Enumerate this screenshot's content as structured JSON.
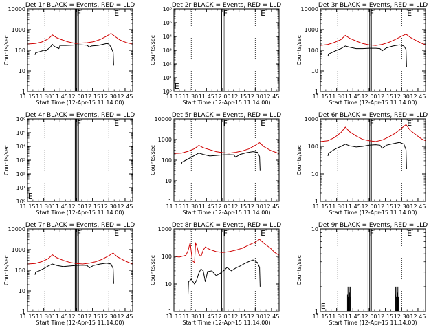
{
  "figure": {
    "xlabel": "Start Time (12-Apr-15 11:14:00)",
    "ylabel": "Counts/sec",
    "x_ticks": [
      "11:15",
      "11:30",
      "11:45",
      "12:00",
      "12:15",
      "12:30",
      "12:45"
    ],
    "x_range_min": [
      1,
      98
    ],
    "time_tick_min": [
      1,
      16,
      31,
      46,
      61,
      76,
      91
    ],
    "dotted_lines_min": [
      17,
      76
    ],
    "box_min": [
      45,
      48
    ],
    "colors": {
      "events": "#000000",
      "lld": "#d00000",
      "axis": "#000000"
    }
  },
  "chart_data": [
    {
      "type": "line",
      "title": "Det 1r BLACK = Events, RED = LLD",
      "yscale": "log",
      "ylim": [
        1,
        10000
      ],
      "yticks": [
        "1",
        "10",
        "100",
        "1000",
        "10000"
      ],
      "markers": [
        {
          "label": "F",
          "x": 46.5
        },
        {
          "label": "E",
          "x": 81
        }
      ],
      "series": [
        {
          "name": "LLD",
          "color": "#d00000",
          "x": [
            1,
            8,
            14,
            20,
            24,
            28,
            32,
            38,
            44,
            46,
            48,
            56,
            62,
            68,
            74,
            78,
            82,
            86,
            90,
            94,
            98
          ],
          "y": [
            200,
            210,
            250,
            350,
            550,
            400,
            330,
            260,
            220,
            210,
            220,
            230,
            260,
            330,
            480,
            650,
            450,
            320,
            260,
            220,
            200
          ]
        },
        {
          "name": "Events",
          "color": "#000000",
          "x": [
            8,
            8.5,
            12,
            16,
            18,
            22,
            24,
            26,
            30,
            31,
            36,
            42,
            46,
            50,
            56,
            58,
            60,
            66,
            72,
            74,
            76,
            78,
            80,
            80.5
          ],
          "y": [
            60,
            75,
            85,
            100,
            95,
            140,
            190,
            150,
            120,
            170,
            170,
            175,
            180,
            180,
            175,
            140,
            160,
            170,
            200,
            210,
            200,
            140,
            80,
            18
          ]
        }
      ]
    },
    {
      "type": "line",
      "title": "Det 2r BLACK = Events, RED = LLD",
      "yscale": "log",
      "ylim": [
        1,
        1000000
      ],
      "yticks": [
        "10⁰",
        "10¹",
        "10²",
        "10³",
        "10⁴",
        "10⁵",
        "10⁶"
      ],
      "markers": [
        {
          "label": "E",
          "x": 1.5
        },
        {
          "label": "F",
          "x": 46.5
        },
        {
          "label": "E",
          "x": 81
        }
      ],
      "series": []
    },
    {
      "type": "line",
      "title": "Det 3r BLACK = Events, RED = LLD",
      "yscale": "log",
      "ylim": [
        1,
        10000
      ],
      "yticks": [
        "1",
        "10",
        "100",
        "1000",
        "10000"
      ],
      "markers": [
        {
          "label": "F",
          "x": 46.5
        },
        {
          "label": "E",
          "x": 81
        }
      ],
      "series": [
        {
          "name": "LLD",
          "color": "#d00000",
          "x": [
            1,
            8,
            14,
            20,
            24,
            28,
            34,
            40,
            46,
            52,
            58,
            64,
            70,
            76,
            80,
            84,
            90,
            94,
            98
          ],
          "y": [
            170,
            190,
            240,
            330,
            520,
            380,
            280,
            210,
            180,
            170,
            190,
            240,
            330,
            480,
            600,
            420,
            280,
            220,
            180
          ]
        },
        {
          "name": "Events",
          "color": "#000000",
          "x": [
            8,
            8.5,
            12,
            16,
            20,
            24,
            28,
            34,
            40,
            46,
            52,
            56,
            58,
            62,
            68,
            74,
            78,
            80,
            80.5
          ],
          "y": [
            50,
            65,
            80,
            100,
            120,
            160,
            140,
            120,
            120,
            125,
            125,
            120,
            95,
            130,
            160,
            180,
            160,
            110,
            15
          ]
        }
      ]
    },
    {
      "type": "line",
      "title": "Det 4r BLACK = Events, RED = LLD",
      "yscale": "log",
      "ylim": [
        1,
        1000000
      ],
      "yticks": [
        "10⁰",
        "10¹",
        "10²",
        "10³",
        "10⁴",
        "10⁵",
        "10⁶"
      ],
      "markers": [
        {
          "label": "E",
          "x": 1.5
        },
        {
          "label": "F",
          "x": 46.5
        },
        {
          "label": "E",
          "x": 81
        }
      ],
      "series": []
    },
    {
      "type": "line",
      "title": "Det 5r BLACK = Events, RED = LLD",
      "yscale": "log",
      "ylim": [
        1,
        10000
      ],
      "yticks": [
        "1",
        "10",
        "100",
        "1000",
        "10000"
      ],
      "markers": [
        {
          "label": "F",
          "x": 46.5
        },
        {
          "label": "E",
          "x": 81
        }
      ],
      "series": [
        {
          "name": "LLD",
          "color": "#d00000",
          "x": [
            1,
            8,
            14,
            20,
            24,
            28,
            34,
            40,
            46,
            52,
            58,
            64,
            70,
            76,
            80,
            84,
            90,
            94,
            98
          ],
          "y": [
            210,
            220,
            270,
            360,
            520,
            400,
            320,
            260,
            230,
            220,
            240,
            280,
            350,
            520,
            700,
            450,
            300,
            250,
            210
          ]
        },
        {
          "name": "Events",
          "color": "#000000",
          "x": [
            8,
            8.5,
            12,
            16,
            20,
            24,
            28,
            34,
            40,
            46,
            52,
            56,
            58,
            62,
            68,
            74,
            78,
            80,
            80.5
          ],
          "y": [
            65,
            80,
            100,
            130,
            170,
            220,
            190,
            160,
            170,
            180,
            185,
            180,
            140,
            190,
            230,
            260,
            240,
            150,
            30
          ]
        }
      ]
    },
    {
      "type": "line",
      "title": "Det 6r BLACK = Events, RED = LLD",
      "yscale": "log",
      "ylim": [
        1,
        1000
      ],
      "yticks": [
        "1",
        "10",
        "100",
        "1000"
      ],
      "markers": [
        {
          "label": "F",
          "x": 46.5
        },
        {
          "label": "E",
          "x": 81
        }
      ],
      "series": [
        {
          "name": "LLD",
          "color": "#d00000",
          "x": [
            1,
            8,
            14,
            20,
            24,
            28,
            34,
            40,
            46,
            52,
            58,
            64,
            70,
            76,
            80,
            84,
            90,
            94,
            98
          ],
          "y": [
            150,
            160,
            210,
            320,
            500,
            340,
            240,
            180,
            160,
            150,
            170,
            220,
            300,
            460,
            620,
            380,
            250,
            190,
            160
          ]
        },
        {
          "name": "Events",
          "color": "#000000",
          "x": [
            8,
            8.5,
            12,
            16,
            20,
            24,
            28,
            34,
            40,
            46,
            52,
            56,
            58,
            62,
            68,
            74,
            78,
            80,
            80.5
          ],
          "y": [
            45,
            55,
            70,
            85,
            100,
            120,
            105,
            95,
            100,
            110,
            115,
            110,
            85,
            110,
            125,
            140,
            120,
            75,
            15
          ]
        }
      ]
    },
    {
      "type": "line",
      "title": "Det 7r BLACK = Events, RED = LLD",
      "yscale": "log",
      "ylim": [
        1,
        10000
      ],
      "yticks": [
        "1",
        "10",
        "100",
        "1000",
        "10000"
      ],
      "markers": [
        {
          "label": "F",
          "x": 46.5
        },
        {
          "label": "E",
          "x": 81
        }
      ],
      "series": [
        {
          "name": "LLD",
          "color": "#d00000",
          "x": [
            1,
            8,
            14,
            20,
            24,
            28,
            34,
            40,
            46,
            52,
            58,
            64,
            70,
            76,
            80,
            84,
            90,
            94,
            98
          ],
          "y": [
            200,
            210,
            260,
            360,
            560,
            400,
            300,
            240,
            210,
            200,
            220,
            260,
            340,
            500,
            680,
            440,
            300,
            240,
            200
          ]
        },
        {
          "name": "Events",
          "color": "#000000",
          "x": [
            8,
            8.5,
            12,
            16,
            20,
            24,
            28,
            34,
            40,
            46,
            52,
            56,
            58,
            62,
            68,
            74,
            78,
            80,
            80.5
          ],
          "y": [
            60,
            80,
            95,
            120,
            160,
            200,
            170,
            150,
            160,
            170,
            175,
            170,
            130,
            170,
            200,
            220,
            200,
            120,
            22
          ]
        }
      ]
    },
    {
      "type": "line",
      "title": "Det 8r BLACK = Events, RED = LLD",
      "yscale": "log",
      "ylim": [
        1,
        1000
      ],
      "yticks": [
        "1",
        "10",
        "100",
        "1000"
      ],
      "markers": [
        {
          "label": "F",
          "x": 46.5
        },
        {
          "label": "E",
          "x": 81
        }
      ],
      "series": [
        {
          "name": "LLD",
          "color": "#d00000",
          "x": [
            1,
            6,
            12,
            14,
            16,
            18,
            20,
            21,
            22,
            24,
            26,
            28,
            30,
            34,
            40,
            46,
            52,
            58,
            64,
            70,
            76,
            80,
            84,
            90,
            94,
            98
          ],
          "y": [
            100,
            95,
            110,
            160,
            320,
            70,
            60,
            300,
            250,
            120,
            100,
            170,
            220,
            180,
            150,
            140,
            150,
            170,
            200,
            260,
            330,
            420,
            300,
            200,
            140,
            110
          ]
        },
        {
          "name": "Events",
          "color": "#000000",
          "x": [
            14,
            14.5,
            17,
            20,
            22,
            24,
            26,
            28,
            30,
            32,
            36,
            40,
            44,
            46,
            50,
            54,
            58,
            62,
            66,
            70,
            74,
            78,
            80,
            80.5
          ],
          "y": [
            4,
            12,
            15,
            10,
            14,
            25,
            35,
            30,
            12,
            28,
            30,
            20,
            25,
            28,
            40,
            30,
            38,
            45,
            55,
            65,
            75,
            60,
            40,
            8
          ]
        }
      ]
    },
    {
      "type": "line",
      "title": "Det 9r BLACK = Events, RED = LLD",
      "yscale": "log",
      "ylim": [
        1,
        10
      ],
      "yticks": [
        "1",
        "10"
      ],
      "markers": [
        {
          "label": "E",
          "x": 1.5
        },
        {
          "label": "F",
          "x": 46.5
        },
        {
          "label": "E",
          "x": 81
        }
      ],
      "series": [
        {
          "name": "Events",
          "color": "#000000",
          "style": "spikes",
          "x": [
            26,
            26.5,
            27,
            27.5,
            28,
            28.5,
            29,
            70,
            70.5,
            71,
            71.5,
            72,
            72.5,
            73
          ],
          "y": [
            1.6,
            2,
            1.5,
            2,
            1.7,
            2,
            1.5,
            1.6,
            2,
            1.5,
            2,
            1.7,
            2,
            1.5
          ]
        }
      ]
    }
  ]
}
